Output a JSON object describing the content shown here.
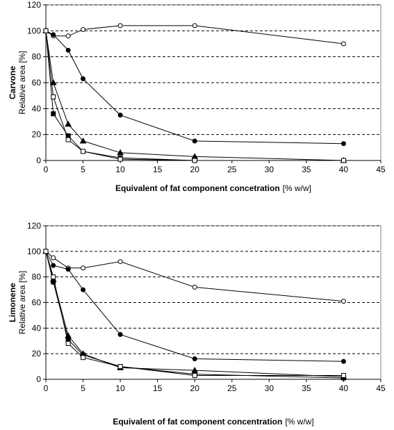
{
  "chart_data": [
    {
      "type": "line",
      "ylabel": "Carvone",
      "ylabel_unit": "Relative area [%]",
      "xlabel": "Equivalent of fat component concetration",
      "xlabel_unit": "[% w/w]",
      "x": [
        0,
        1,
        3,
        5,
        10,
        20,
        40
      ],
      "xlim": [
        0,
        45
      ],
      "xticks": [
        0,
        5,
        10,
        15,
        20,
        25,
        30,
        35,
        40,
        45
      ],
      "ylim": [
        0,
        120
      ],
      "yticks": [
        0,
        20,
        40,
        60,
        80,
        100,
        120
      ],
      "grid": true,
      "series": [
        {
          "marker": "circle-open",
          "color": "#000000",
          "values": [
            100,
            96,
            96,
            101,
            104,
            104,
            90
          ]
        },
        {
          "marker": "circle-filled",
          "color": "#000000",
          "values": [
            100,
            97,
            85,
            63,
            35,
            15,
            13
          ]
        },
        {
          "marker": "triangle-filled",
          "color": "#000000",
          "values": [
            100,
            60,
            28,
            15,
            6,
            3,
            0
          ]
        },
        {
          "marker": "square-filled",
          "color": "#000000",
          "values": [
            100,
            36,
            19,
            7,
            2,
            0,
            0
          ]
        },
        {
          "marker": "square-open",
          "color": "#000000",
          "values": [
            100,
            49,
            16,
            7,
            1,
            0,
            0
          ]
        }
      ]
    },
    {
      "type": "line",
      "ylabel": "Limonene",
      "ylabel_unit": "Relative area [%]",
      "xlabel": "Equivalent of fat component concentration",
      "xlabel_unit": "[% w/w]",
      "x": [
        0,
        1,
        3,
        5,
        10,
        20,
        40
      ],
      "xlim": [
        0,
        45
      ],
      "xticks": [
        0,
        5,
        10,
        15,
        20,
        25,
        30,
        35,
        40,
        45
      ],
      "ylim": [
        0,
        120
      ],
      "yticks": [
        0,
        20,
        40,
        60,
        80,
        100,
        120
      ],
      "grid": true,
      "series": [
        {
          "marker": "circle-open",
          "color": "#000000",
          "values": [
            100,
            95,
            87,
            87,
            92,
            72,
            61
          ]
        },
        {
          "marker": "circle-filled",
          "color": "#000000",
          "values": [
            100,
            89,
            86,
            70,
            35,
            16,
            14
          ]
        },
        {
          "marker": "triangle-filled",
          "color": "#000000",
          "values": [
            100,
            78,
            34,
            20,
            9,
            7,
            2
          ]
        },
        {
          "marker": "square-filled",
          "color": "#000000",
          "values": [
            100,
            76,
            31,
            19,
            10,
            4,
            1
          ]
        },
        {
          "marker": "square-open",
          "color": "#000000",
          "values": [
            100,
            80,
            28,
            17,
            10,
            3,
            3
          ]
        }
      ]
    }
  ]
}
